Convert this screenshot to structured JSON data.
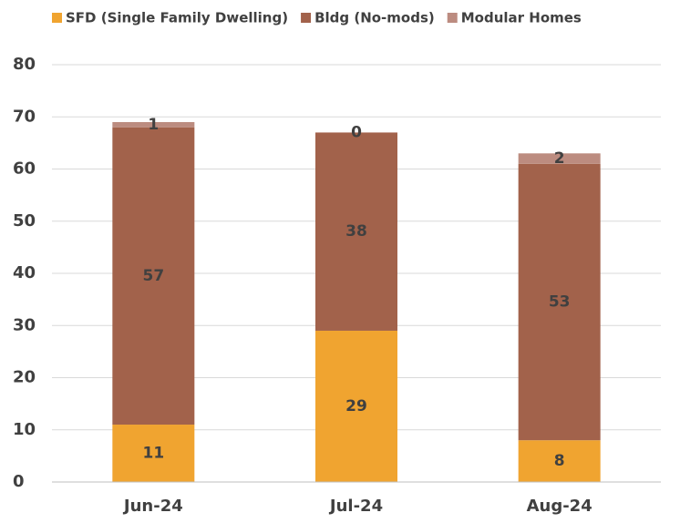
{
  "chart_data": {
    "type": "stacked_bar",
    "categories": [
      "Jun-24",
      "Jul-24",
      "Aug-24"
    ],
    "series": [
      {
        "name": "SFD (Single Family Dwelling)",
        "color": "#f0a430",
        "values": [
          11,
          29,
          8
        ]
      },
      {
        "name": "Bldg (No-mods)",
        "color": "#a2624b",
        "values": [
          57,
          38,
          53
        ]
      },
      {
        "name": "Modular Homes",
        "color": "#bc8c80",
        "values": [
          1,
          0,
          2
        ]
      }
    ],
    "ylim": [
      0,
      80
    ],
    "yticks": [
      0,
      10,
      20,
      30,
      40,
      50,
      60,
      70,
      80
    ],
    "grid": true,
    "legend": "top"
  }
}
